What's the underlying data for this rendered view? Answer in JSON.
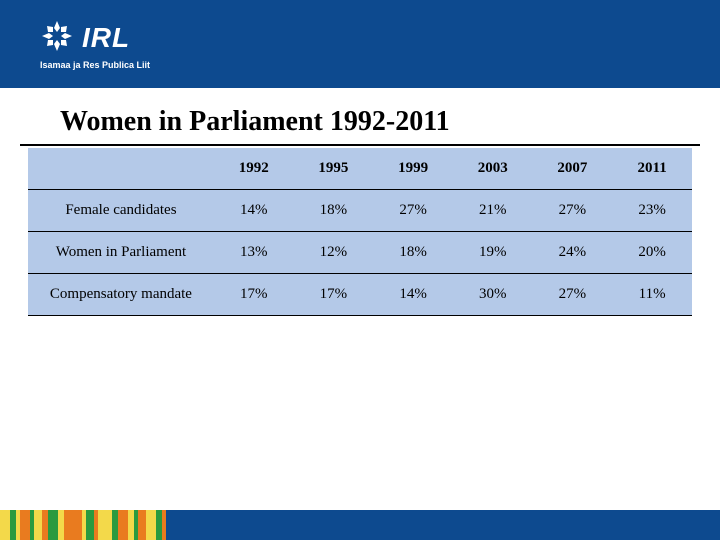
{
  "header": {
    "logo_text": "IRL",
    "logo_subtitle": "Isamaa ja Res Publica Liit",
    "band_color": "#0d4a8f"
  },
  "title": "Women in Parliament 1992-2011",
  "table": {
    "background_color": "#b4c9e8",
    "border_color": "#000000",
    "header_fontsize": 15,
    "cell_fontsize": 15,
    "years": [
      "1992",
      "1995",
      "1999",
      "2003",
      "2007",
      "2011"
    ],
    "rows": [
      {
        "label": "Female candidates",
        "values": [
          "14%",
          "18%",
          "27%",
          "21%",
          "27%",
          "23%"
        ]
      },
      {
        "label": "Women in Parliament",
        "values": [
          "13%",
          "12%",
          "18%",
          "19%",
          "24%",
          "20%"
        ]
      },
      {
        "label": "Compensatory mandate",
        "values": [
          "17%",
          "17%",
          "14%",
          "30%",
          "27%",
          "11%"
        ]
      }
    ]
  },
  "footer": {
    "stripes": [
      {
        "color": "#f3d94a",
        "width": 10
      },
      {
        "color": "#2a9a3f",
        "width": 6
      },
      {
        "color": "#f3d94a",
        "width": 4
      },
      {
        "color": "#e97b1f",
        "width": 10
      },
      {
        "color": "#2a9a3f",
        "width": 4
      },
      {
        "color": "#f3d94a",
        "width": 8
      },
      {
        "color": "#e97b1f",
        "width": 6
      },
      {
        "color": "#2a9a3f",
        "width": 10
      },
      {
        "color": "#f3d94a",
        "width": 6
      },
      {
        "color": "#e97b1f",
        "width": 18
      },
      {
        "color": "#f3d94a",
        "width": 4
      },
      {
        "color": "#2a9a3f",
        "width": 8
      },
      {
        "color": "#e97b1f",
        "width": 4
      },
      {
        "color": "#f3d94a",
        "width": 14
      },
      {
        "color": "#2a9a3f",
        "width": 6
      },
      {
        "color": "#e97b1f",
        "width": 10
      },
      {
        "color": "#f3d94a",
        "width": 6
      },
      {
        "color": "#2a9a3f",
        "width": 4
      },
      {
        "color": "#e97b1f",
        "width": 8
      },
      {
        "color": "#f3d94a",
        "width": 10
      },
      {
        "color": "#2a9a3f",
        "width": 6
      },
      {
        "color": "#e97b1f",
        "width": 4
      }
    ],
    "main_color": "#0d4a8f"
  }
}
